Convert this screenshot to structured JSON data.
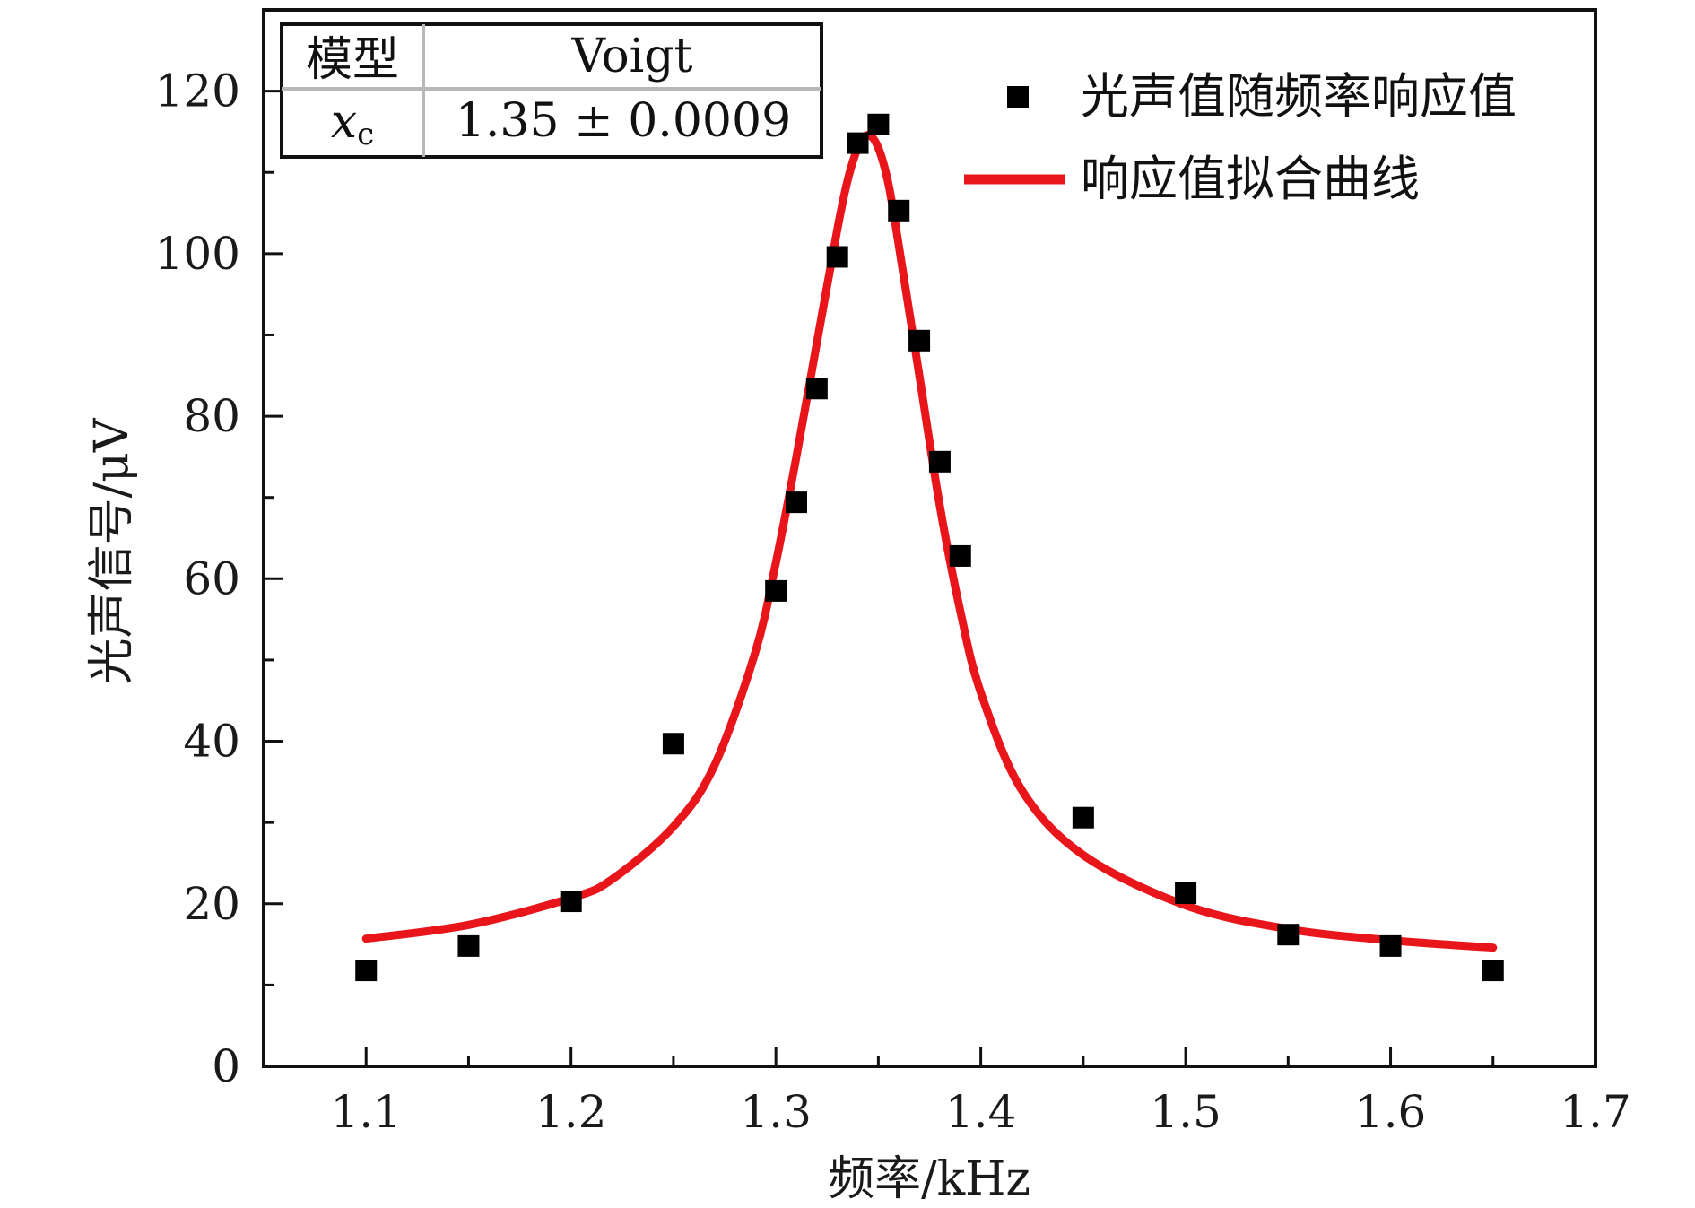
{
  "chart_data": {
    "type": "scatter",
    "xlabel": "频率/kHz",
    "ylabel": "光声信号/μV",
    "xlim": [
      1.05,
      1.7
    ],
    "ylim": [
      0,
      130
    ],
    "xticks": [
      {
        "value": 1.1,
        "label": "1.1"
      },
      {
        "value": 1.2,
        "label": "1.2"
      },
      {
        "value": 1.3,
        "label": "1.3"
      },
      {
        "value": 1.4,
        "label": "1.4"
      },
      {
        "value": 1.5,
        "label": "1.5"
      },
      {
        "value": 1.6,
        "label": "1.6"
      },
      {
        "value": 1.7,
        "label": "1.7"
      }
    ],
    "yticks": [
      {
        "value": 0,
        "label": "0"
      },
      {
        "value": 20,
        "label": "20"
      },
      {
        "value": 40,
        "label": "40"
      },
      {
        "value": 60,
        "label": "60"
      },
      {
        "value": 80,
        "label": "80"
      },
      {
        "value": 100,
        "label": "100"
      },
      {
        "value": 120,
        "label": "120"
      }
    ],
    "grid": false,
    "legend_position": "top-right",
    "series": [
      {
        "name": "光声值随频率响应值",
        "kind": "scatter",
        "marker": "square",
        "color": "#000000",
        "x": [
          1.1,
          1.15,
          1.2,
          1.25,
          1.3,
          1.31,
          1.32,
          1.33,
          1.34,
          1.35,
          1.36,
          1.37,
          1.38,
          1.39,
          1.45,
          1.5,
          1.55,
          1.6,
          1.65
        ],
        "y": [
          11.8,
          14.8,
          20.3,
          39.7,
          58.5,
          69.4,
          83.4,
          99.6,
          113.6,
          115.9,
          105.3,
          89.3,
          74.4,
          62.8,
          30.6,
          21.3,
          16.2,
          14.8,
          11.8
        ]
      },
      {
        "name": "响应值拟合曲线",
        "kind": "line",
        "color": "#e8151b",
        "x": [
          1.1,
          1.15,
          1.2,
          1.22,
          1.25,
          1.27,
          1.29,
          1.3,
          1.31,
          1.32,
          1.33,
          1.335,
          1.34,
          1.345,
          1.35,
          1.355,
          1.36,
          1.37,
          1.38,
          1.39,
          1.4,
          1.42,
          1.45,
          1.5,
          1.55,
          1.6,
          1.65
        ],
        "y": [
          15.7,
          17.4,
          20.7,
          23.0,
          29.5,
          37.0,
          51.0,
          62.0,
          75.0,
          89.0,
          103.0,
          109.0,
          113.0,
          114.6,
          113.0,
          108.5,
          101.0,
          85.0,
          69.0,
          56.0,
          46.0,
          34.0,
          26.0,
          19.8,
          16.9,
          15.5,
          14.6
        ]
      }
    ],
    "annotation_table": {
      "rows": [
        [
          "模型",
          "Voigt"
        ],
        [
          "x",
          "1.35 ± 0.0009"
        ]
      ],
      "row2_label_subscript": "c"
    }
  }
}
